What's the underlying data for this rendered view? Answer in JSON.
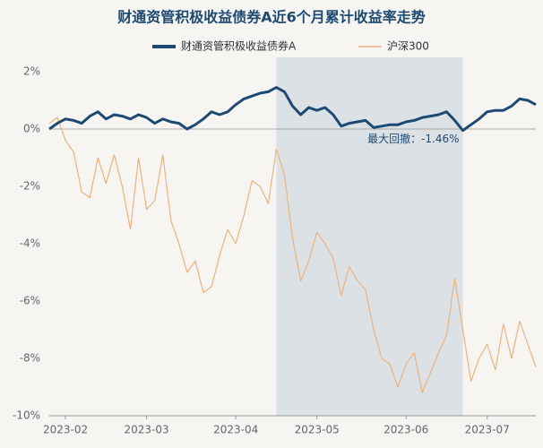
{
  "chart_data": {
    "type": "line",
    "title": "财通资管积极收益债券A近6个月累计收益率走势",
    "annotation": "最大回撤：-1.46%",
    "categories": [
      null,
      null,
      "2023-02",
      null,
      null,
      null,
      null,
      null,
      null,
      null,
      null,
      null,
      "2023-03",
      null,
      null,
      null,
      null,
      null,
      null,
      null,
      null,
      null,
      null,
      "2023-04",
      null,
      null,
      null,
      null,
      null,
      null,
      null,
      null,
      null,
      "2023-05",
      null,
      null,
      null,
      null,
      null,
      null,
      null,
      null,
      null,
      null,
      "2023-06",
      null,
      null,
      null,
      null,
      null,
      null,
      null,
      null,
      null,
      "2023-07",
      null,
      null,
      null,
      null,
      null,
      null
    ],
    "series": [
      {
        "name": "财通资管积极收益债券A",
        "color": "#1d4a72",
        "values": [
          0.0,
          0.2,
          0.35,
          0.3,
          0.2,
          0.45,
          0.6,
          0.35,
          0.5,
          0.45,
          0.35,
          0.5,
          0.4,
          0.2,
          0.35,
          0.25,
          0.2,
          0.0,
          0.15,
          0.35,
          0.6,
          0.5,
          0.6,
          0.85,
          1.05,
          1.15,
          1.25,
          1.3,
          1.45,
          1.3,
          0.8,
          0.5,
          0.75,
          0.65,
          0.75,
          0.5,
          0.1,
          0.2,
          0.25,
          0.3,
          0.05,
          0.1,
          0.15,
          0.15,
          0.25,
          0.3,
          0.4,
          0.45,
          0.5,
          0.6,
          0.3,
          -0.05,
          0.15,
          0.35,
          0.6,
          0.65,
          0.65,
          0.8,
          1.05,
          1.0,
          0.85
        ]
      },
      {
        "name": "沪深300",
        "color": "#f0b27a",
        "values": [
          0.2,
          0.4,
          -0.4,
          -0.8,
          -2.2,
          -2.4,
          -1.0,
          -1.9,
          -0.9,
          -2.0,
          -3.5,
          -1.0,
          -2.8,
          -2.5,
          -0.9,
          -3.2,
          -4.0,
          -5.0,
          -4.6,
          -5.7,
          -5.5,
          -4.4,
          -3.5,
          -4.0,
          -3.0,
          -1.8,
          -2.0,
          -2.6,
          -0.7,
          -1.6,
          -3.8,
          -5.3,
          -4.6,
          -3.6,
          -4.0,
          -4.5,
          -5.8,
          -4.8,
          -5.3,
          -5.6,
          -7.0,
          -8.0,
          -8.2,
          -9.0,
          -8.2,
          -7.8,
          -9.2,
          -8.5,
          -7.8,
          -7.2,
          -5.2,
          -7.0,
          -8.8,
          -8.0,
          -7.5,
          -8.4,
          -6.8,
          -8.0,
          -6.7,
          -7.5,
          -8.3
        ]
      }
    ],
    "ylim": [
      -10,
      2.5
    ],
    "yticks": [
      {
        "value": -10,
        "label": "-10%"
      },
      {
        "value": -8,
        "label": "-8%"
      },
      {
        "value": -6,
        "label": "-6%"
      },
      {
        "value": -4,
        "label": "-4%"
      },
      {
        "value": -2,
        "label": "-2%"
      },
      {
        "value": 0,
        "label": "0%"
      },
      {
        "value": 2,
        "label": "2%"
      }
    ]
  }
}
